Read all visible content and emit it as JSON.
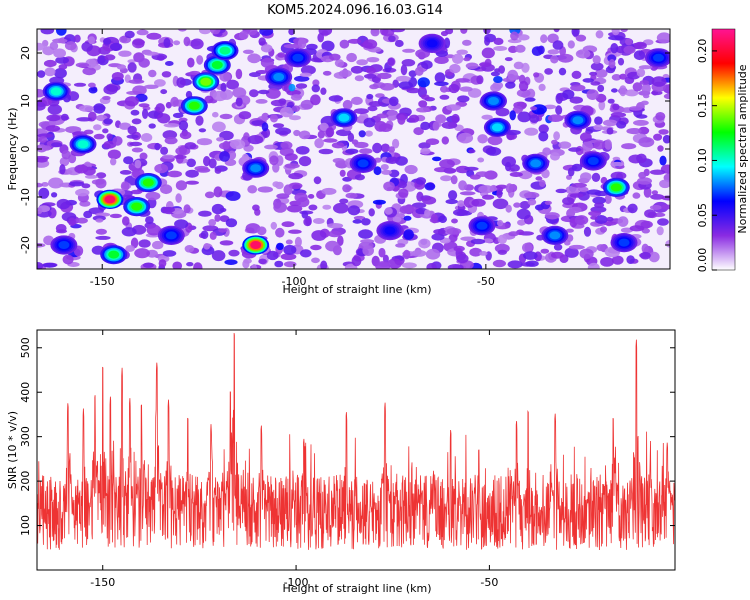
{
  "title": "KOM5.2024.096.16.03.G14",
  "chart_data": [
    {
      "type": "heatmap",
      "xlabel": "Height of straight line (km)",
      "ylabel": "Frequency (Hz)",
      "xlim": [
        -167,
        -2
      ],
      "ylim": [
        -25,
        25
      ],
      "xticks": [
        -150,
        -100,
        -50
      ],
      "yticks": [
        -20,
        -10,
        0,
        10,
        20
      ],
      "colorbar": {
        "label": "Normalized spectral amplitude",
        "range": [
          0.0,
          0.22
        ],
        "ticks": [
          "0.00",
          "0.05",
          "0.10",
          "0.15",
          "0.20"
        ],
        "colormap": [
          "#ffffff",
          "#8a2be2",
          "#0000ff",
          "#00ffff",
          "#00ff00",
          "#ffff00",
          "#ff0000",
          "#ff1493"
        ]
      },
      "background_level": 0.03,
      "hotspots": [
        {
          "x": -148,
          "y": -10.5,
          "value": 0.21
        },
        {
          "x": -110,
          "y": -20.0,
          "value": 0.21
        },
        {
          "x": -16,
          "y": -8.0,
          "value": 0.13
        },
        {
          "x": -147,
          "y": -22.0,
          "value": 0.12
        },
        {
          "x": -126,
          "y": 9.0,
          "value": 0.13
        },
        {
          "x": -123,
          "y": 14.0,
          "value": 0.14
        },
        {
          "x": -120,
          "y": 17.5,
          "value": 0.12
        },
        {
          "x": -118,
          "y": 20.5,
          "value": 0.11
        },
        {
          "x": -141,
          "y": -12.0,
          "value": 0.13
        },
        {
          "x": -138,
          "y": -7.0,
          "value": 0.13
        },
        {
          "x": -155,
          "y": 1.0,
          "value": 0.1
        },
        {
          "x": -162,
          "y": 12.0,
          "value": 0.1
        },
        {
          "x": -104,
          "y": 15.0,
          "value": 0.08
        },
        {
          "x": -87,
          "y": 6.5,
          "value": 0.09
        },
        {
          "x": -47,
          "y": 4.5,
          "value": 0.09
        },
        {
          "x": -48,
          "y": 10.0,
          "value": 0.08
        },
        {
          "x": -26,
          "y": 6.0,
          "value": 0.08
        },
        {
          "x": -37,
          "y": -3.0,
          "value": 0.08
        },
        {
          "x": -110,
          "y": -4.0,
          "value": 0.08
        },
        {
          "x": -82,
          "y": -3.0,
          "value": 0.07
        },
        {
          "x": -22,
          "y": -2.5,
          "value": 0.07
        },
        {
          "x": -32,
          "y": -18.0,
          "value": 0.08
        },
        {
          "x": -14,
          "y": -19.5,
          "value": 0.07
        },
        {
          "x": -99,
          "y": 19.0,
          "value": 0.07
        },
        {
          "x": -51,
          "y": -16.0,
          "value": 0.07
        },
        {
          "x": -160,
          "y": -20.0,
          "value": 0.07
        },
        {
          "x": -5,
          "y": 19.0,
          "value": 0.07
        },
        {
          "x": -75,
          "y": -17.0,
          "value": 0.06
        },
        {
          "x": -132,
          "y": -18.0,
          "value": 0.07
        },
        {
          "x": -64,
          "y": 22.0,
          "value": 0.06
        }
      ]
    },
    {
      "type": "line",
      "xlabel": "Height of straight line (km)",
      "ylabel": "SNR (10 * v/v)",
      "xlim": [
        -167,
        -2
      ],
      "ylim": [
        0,
        540
      ],
      "xticks": [
        -150,
        -100,
        -50
      ],
      "yticks": [
        100,
        200,
        300,
        400,
        500
      ],
      "color": "#ee3333",
      "baseline_mean": 130,
      "peaks": [
        {
          "x": -116,
          "y": 540
        },
        {
          "x": -12,
          "y": 520
        },
        {
          "x": -150,
          "y": 465
        },
        {
          "x": -136,
          "y": 470
        },
        {
          "x": -145,
          "y": 455
        },
        {
          "x": -117,
          "y": 410
        },
        {
          "x": -159,
          "y": 380
        },
        {
          "x": -155,
          "y": 365
        },
        {
          "x": -152,
          "y": 400
        },
        {
          "x": -148,
          "y": 395
        },
        {
          "x": -143,
          "y": 390
        },
        {
          "x": -140,
          "y": 380
        },
        {
          "x": -133,
          "y": 385
        },
        {
          "x": -128,
          "y": 350
        },
        {
          "x": -122,
          "y": 330
        },
        {
          "x": -87,
          "y": 360
        },
        {
          "x": -77,
          "y": 380
        },
        {
          "x": -109,
          "y": 330
        },
        {
          "x": -40,
          "y": 365
        },
        {
          "x": -43,
          "y": 340
        },
        {
          "x": -33,
          "y": 355
        },
        {
          "x": -18,
          "y": 350
        },
        {
          "x": -60,
          "y": 320
        },
        {
          "x": -98,
          "y": 300
        },
        {
          "x": -4,
          "y": 290
        }
      ]
    }
  ]
}
